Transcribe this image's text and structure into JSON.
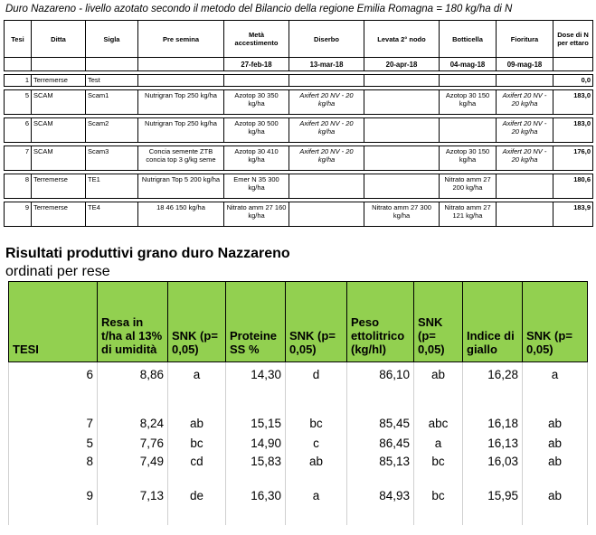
{
  "title": "Duro Nazareno  - livello azotato secondo il metodo del Bilancio della regione Emilia Romagna = 180 kg/ha di N",
  "headers": [
    "Tesi",
    "Ditta",
    "Sigla",
    "Pre semina",
    "Metà accestimento",
    "Diserbo",
    "Levata 2° nodo",
    "Botticella",
    "Fioritura",
    "Dose di N per ettaro"
  ],
  "dates": [
    "27-feb-18",
    "13-mar-18",
    "20-apr-18",
    "04-mag-18",
    "09-mag-18"
  ],
  "rows": [
    {
      "tesi": "1",
      "ditta": "Terremerse",
      "sigla": "Test",
      "pre": "",
      "meta": "",
      "diserbo": "",
      "levata": "",
      "botticella": "",
      "fioritura": "",
      "dose": "0,0"
    },
    {
      "tesi": "5",
      "ditta": "SCAM",
      "sigla": "Scam1",
      "pre": "Nutrigran Top 250 kg/ha",
      "meta": "Azotop 30 350 kg/ha",
      "diserbo": "Axifert 20 NV - 20 kg/ha",
      "levata": "",
      "botticella": "Azotop 30 150 kg/ha",
      "fioritura": "Axifert 20 NV - 20 kg/ha",
      "dose": "183,0"
    },
    {
      "tesi": "6",
      "ditta": "SCAM",
      "sigla": "Scam2",
      "pre": "Nutrigran Top 250 kg/ha",
      "meta": "Azotop 30 500 kg/ha",
      "diserbo": "Axifert 20 NV - 20 kg/ha",
      "levata": "",
      "botticella": "",
      "fioritura": "Axifert 20 NV - 20 kg/ha",
      "dose": "183,0"
    },
    {
      "tesi": "7",
      "ditta": "SCAM",
      "sigla": "Scam3",
      "pre": "Concia semente ZTB concia top 3 g/kg seme",
      "meta": "Azotop 30 410 kg/ha",
      "diserbo": "Axifert 20 NV - 20 kg/ha",
      "levata": "",
      "botticella": "Azotop 30 150 kg/ha",
      "fioritura": "Axifert 20 NV - 20 kg/ha",
      "dose": "176,0"
    },
    {
      "tesi": "8",
      "ditta": "Terremerse",
      "sigla": "TE1",
      "pre": "Nutrigran Top 5 200 kg/ha",
      "meta": "Emer N 35 300 kg/ha",
      "diserbo": "",
      "levata": "",
      "botticella": "Nitrato amm 27 200 kg/ha",
      "fioritura": "",
      "dose": "180,6"
    },
    {
      "tesi": "9",
      "ditta": "Terremerse",
      "sigla": "TE4",
      "pre": "18 46 150 kg/ha",
      "meta": "Nitrato amm 27 160 kg/ha",
      "diserbo": "",
      "levata": "Nitrato amm 27 300 kg/ha",
      "botticella": "Nitrato amm 27 121 kg/ha",
      "fioritura": "",
      "dose": "183,9"
    }
  ],
  "results": {
    "title": "Risultati produttivi grano duro Nazzareno",
    "subtitle": "ordinati per rese",
    "headers": [
      "TESI",
      "Resa in t/ha al 13% di umidità",
      "SNK (p= 0,05)",
      "Proteine SS %",
      "SNK (p= 0,05)",
      "Peso ettolitrico (kg/hl)",
      "SNK (p= 0,05)",
      "Indice di giallo",
      "SNK (p= 0,05)"
    ],
    "rows": [
      {
        "tesi": "6",
        "resa": "8,86",
        "snk1": "a",
        "proteine": "14,30",
        "snk2": "d",
        "peso": "86,10",
        "snk3": "ab",
        "giallo": "16,28",
        "snk4": "a"
      },
      {
        "tesi": "7",
        "resa": "8,24",
        "snk1": "ab",
        "proteine": "15,15",
        "snk2": "bc",
        "peso": "85,45",
        "snk3": "abc",
        "giallo": "16,18",
        "snk4": "ab"
      },
      {
        "tesi": "5",
        "resa": "7,76",
        "snk1": "bc",
        "proteine": "14,90",
        "snk2": "c",
        "peso": "86,45",
        "snk3": "a",
        "giallo": "16,13",
        "snk4": "ab"
      },
      {
        "tesi": "8",
        "resa": "7,49",
        "snk1": "cd",
        "proteine": "15,83",
        "snk2": "ab",
        "peso": "85,13",
        "snk3": "bc",
        "giallo": "16,03",
        "snk4": "ab"
      },
      {
        "tesi": "9",
        "resa": "7,13",
        "snk1": "de",
        "proteine": "16,30",
        "snk2": "a",
        "peso": "84,93",
        "snk3": "bc",
        "giallo": "15,95",
        "snk4": "ab"
      }
    ]
  }
}
